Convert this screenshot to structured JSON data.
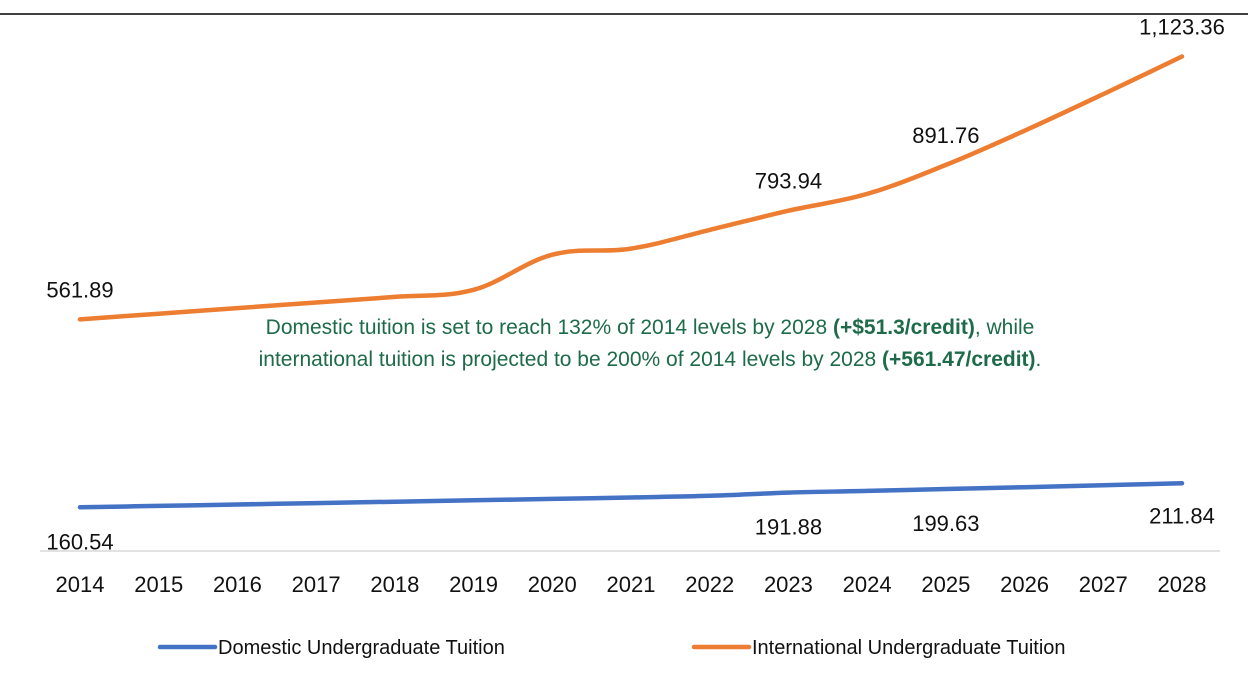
{
  "chart_data": {
    "type": "line",
    "categories": [
      "2014",
      "2015",
      "2016",
      "2017",
      "2018",
      "2019",
      "2020",
      "2021",
      "2022",
      "2023",
      "2024",
      "2025",
      "2026",
      "2027",
      "2028"
    ],
    "series": [
      {
        "name": "Domestic Undergraduate Tuition",
        "color": "#4472c4",
        "values": [
          160.54,
          163.5,
          166.5,
          169.5,
          172.5,
          175.5,
          178.5,
          181.5,
          185.0,
          191.88,
          195.5,
          199.63,
          203.5,
          207.7,
          211.84
        ]
      },
      {
        "name": "International Undergraduate Tuition",
        "color": "#ed7d31",
        "values": [
          561.89,
          574.0,
          586.0,
          598.0,
          610.0,
          625.0,
          700.0,
          713.0,
          753.0,
          793.94,
          830.0,
          891.76,
          965.0,
          1043.0,
          1123.36
        ]
      }
    ],
    "data_labels": [
      {
        "series": 0,
        "index": 0,
        "text": "160.54"
      },
      {
        "series": 0,
        "index": 9,
        "text": "191.88"
      },
      {
        "series": 0,
        "index": 11,
        "text": "199.63"
      },
      {
        "series": 0,
        "index": 14,
        "text": "211.84"
      },
      {
        "series": 1,
        "index": 0,
        "text": "561.89"
      },
      {
        "series": 1,
        "index": 9,
        "text": "793.94"
      },
      {
        "series": 1,
        "index": 11,
        "text": "891.76"
      },
      {
        "series": 1,
        "index": 14,
        "text": "1,123.36"
      }
    ],
    "legend_position": "bottom",
    "grid": false,
    "ylim": [
      80,
      1180
    ]
  },
  "annotation": {
    "line1_a": "Domestic tuition is set to reach 132% of 2014 levels by 2028 ",
    "line1_b": "(+$51.3/credit)",
    "line1_c": ", while",
    "line2_a": "international tuition is projected to be 200% of 2014 levels by 2028 ",
    "line2_b": "(+561.47/credit)",
    "line2_c": "."
  }
}
